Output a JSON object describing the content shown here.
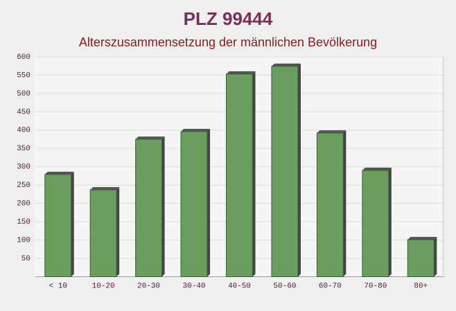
{
  "chart_data": {
    "type": "bar",
    "title": "PLZ 99444",
    "subtitle": "Alterszusammensetzung der männlichen Bevölkerung",
    "categories": [
      "< 10",
      "10-20",
      "20-30",
      "30-40",
      "40-50",
      "50-60",
      "60-70",
      "70-80",
      "80+"
    ],
    "values": [
      279,
      237,
      375,
      396,
      553,
      574,
      392,
      290,
      101
    ],
    "color": "#6a9e5e",
    "ylim": [
      0,
      600
    ],
    "yticks": [
      50,
      100,
      150,
      200,
      250,
      300,
      350,
      400,
      450,
      500,
      550,
      600
    ],
    "grid": true
  }
}
